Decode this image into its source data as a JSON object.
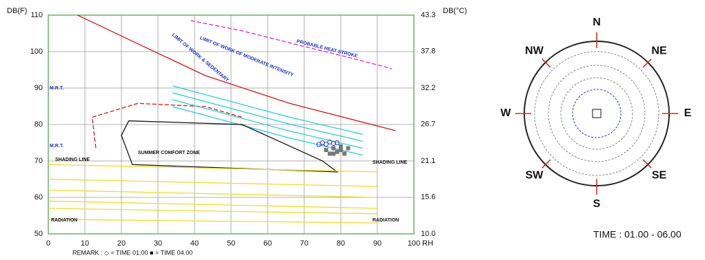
{
  "chart_data": [
    {
      "type": "line",
      "y_label": "DB(F)",
      "y2_label": "DB(°C)",
      "x_label": "RH",
      "xlim": [
        0,
        100
      ],
      "xticks": [
        0,
        10,
        20,
        30,
        40,
        50,
        60,
        70,
        80,
        90,
        100
      ],
      "ylim": [
        50,
        110
      ],
      "yticks": [
        50,
        60,
        70,
        80,
        90,
        100,
        110
      ],
      "y2lim": [
        10,
        43.3
      ],
      "y2ticks": [
        {
          "value": 10,
          "label": "10.0"
        },
        15.6,
        21.1,
        26.7,
        32.2,
        37.8,
        43.3
      ],
      "grid": true,
      "annotations": [
        "PROBABLE HEAT STROKE",
        "SUMMER COMFORT ZONE",
        "SHADING LINE",
        "SHADING LINE",
        "LIMIT OF WORK OF MODERATE INTENSITY",
        "LIMIT OF WORK & SEDENTARY",
        "RADIATION",
        "RADIATION",
        "M.R.T.",
        "M.R.T."
      ],
      "remark": "REMARK  : ◇ =  TIME 01.00  ■ =  TIME 04.00",
      "series": [
        {
          "color": "#e020e0",
          "dash": true,
          "x": [
            39,
            53,
            68,
            81,
            94
          ],
          "values": [
            108.5,
            105.7,
            101.9,
            98.7,
            95.3
          ]
        },
        {
          "color": "#e01010",
          "x": [
            8,
            25,
            43,
            66,
            95
          ],
          "values": [
            110,
            101.9,
            93.4,
            85.8,
            78.3
          ]
        },
        {
          "color": "#e01010",
          "dash": true,
          "x": [
            13,
            12,
            24.5,
            43,
            53
          ],
          "values": [
            73.6,
            82,
            85.8,
            84.9,
            82
          ]
        },
        {
          "color": "#20d0e0",
          "x": [
            34,
            66,
            86
          ],
          "values": [
            90.6,
            82,
            77.3
          ]
        },
        {
          "color": "#20d0e0",
          "x": [
            34,
            66,
            86
          ],
          "values": [
            88.7,
            80.1,
            75.4
          ]
        },
        {
          "color": "#20d0e0",
          "x": [
            34,
            66,
            86
          ],
          "values": [
            86.8,
            78.2,
            73.5
          ]
        },
        {
          "color": "#20d0e0",
          "x": [
            34,
            66,
            86
          ],
          "values": [
            84.9,
            76.3,
            71.6
          ]
        },
        {
          "color": "#111111",
          "x": [
            22,
            53,
            75,
            79,
            23,
            20,
            22
          ],
          "values": [
            81,
            80,
            70,
            67,
            69,
            77,
            81
          ]
        },
        {
          "color": "#e8e020",
          "x": [
            0,
            90
          ],
          "values": [
            69,
            67
          ]
        },
        {
          "color": "#e8e020",
          "x": [
            0,
            90
          ],
          "values": [
            65,
            63
          ]
        },
        {
          "color": "#e8e020",
          "x": [
            0,
            90
          ],
          "values": [
            62,
            60
          ]
        },
        {
          "color": "#e8e020",
          "x": [
            0,
            90
          ],
          "values": [
            59,
            57
          ]
        },
        {
          "color": "#e8e020",
          "x": [
            0,
            90
          ],
          "values": [
            57,
            55.5
          ]
        },
        {
          "color": "#e8e020",
          "x": [
            0,
            90
          ],
          "values": [
            54,
            53
          ]
        },
        {
          "color": "#3030d0",
          "marker": "circle",
          "x": [
            74,
            75,
            76,
            77,
            78,
            79
          ],
          "values": [
            74.5,
            75,
            74.6,
            75.2,
            74.8,
            75
          ]
        },
        {
          "color": "#777777",
          "marker": "square",
          "x": [
            76,
            77,
            78,
            79,
            80,
            81,
            82,
            78,
            80
          ],
          "values": [
            73,
            72,
            73.5,
            72.5,
            73,
            72,
            73.5,
            72,
            74
          ]
        }
      ]
    },
    {
      "type": "wind-rose",
      "title": "TIME : 01.00 - 06.00",
      "directions": [
        "N",
        "NE",
        "E",
        "SE",
        "S",
        "SW",
        "W",
        "NW"
      ]
    }
  ]
}
